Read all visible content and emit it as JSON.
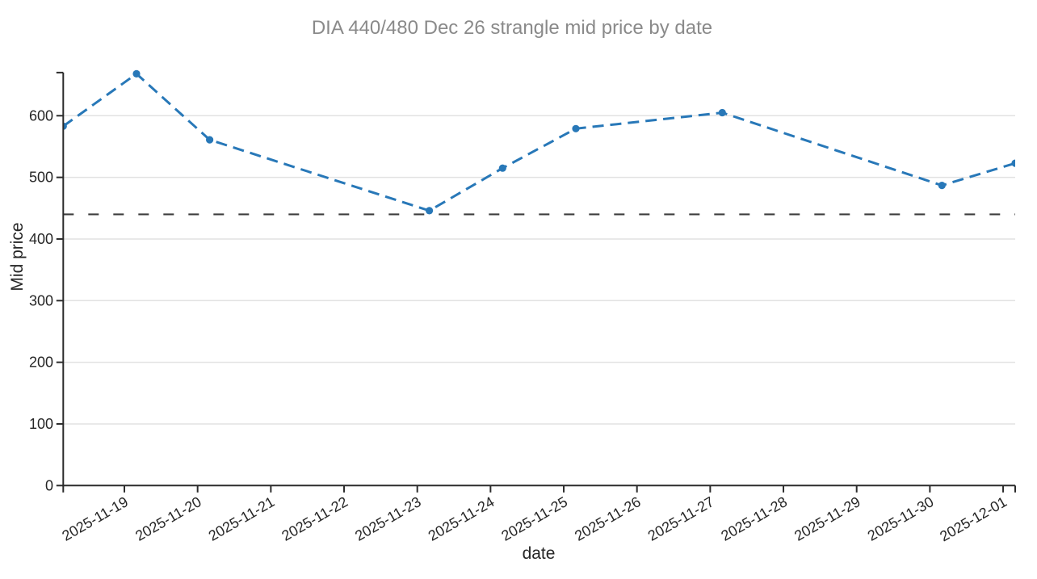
{
  "chart_data": {
    "type": "line",
    "title": "DIA 440/480 Dec 26 strangle mid price by date",
    "xlabel": "date",
    "ylabel": "Mid price",
    "x_tick_labels": [
      "2025-11-19",
      "2025-11-20",
      "2025-11-21",
      "2025-11-22",
      "2025-11-23",
      "2025-11-24",
      "2025-11-25",
      "2025-11-26",
      "2025-11-27",
      "2025-11-28",
      "2025-11-29",
      "2025-11-30",
      "2025-12-01"
    ],
    "y_ticks": [
      0,
      100,
      200,
      300,
      400,
      500,
      600
    ],
    "ylim": [
      0,
      670
    ],
    "xlim_days": [
      -0.835,
      12.165
    ],
    "grid": "horizontal-only",
    "legend": "none",
    "series": [
      {
        "name": "strangle mid price",
        "style": "dashed-line-with-circle-markers",
        "points": [
          {
            "date": "2025-11-18",
            "day": -0.835,
            "value": 583
          },
          {
            "date": "2025-11-19",
            "day": 0.165,
            "value": 668
          },
          {
            "date": "2025-11-20",
            "day": 1.165,
            "value": 561
          },
          {
            "date": "2025-11-23",
            "day": 4.165,
            "value": 446
          },
          {
            "date": "2025-11-24",
            "day": 5.165,
            "value": 515
          },
          {
            "date": "2025-11-25",
            "day": 6.165,
            "value": 579
          },
          {
            "date": "2025-11-27",
            "day": 8.165,
            "value": 605
          },
          {
            "date": "2025-11-30",
            "day": 11.165,
            "value": 487
          },
          {
            "date": "2025-12-01",
            "day": 12.165,
            "value": 523
          }
        ]
      }
    ],
    "reference_line": {
      "value": 440,
      "orientation": "horizontal",
      "style": "dashed"
    },
    "colors": {
      "series": "#2878b8",
      "reference_line": "#3d3d3d",
      "axis": "#2b2b2b",
      "grid": "#e2e2e2",
      "title": "#8a8a8a",
      "tick_label": "#262626"
    }
  }
}
